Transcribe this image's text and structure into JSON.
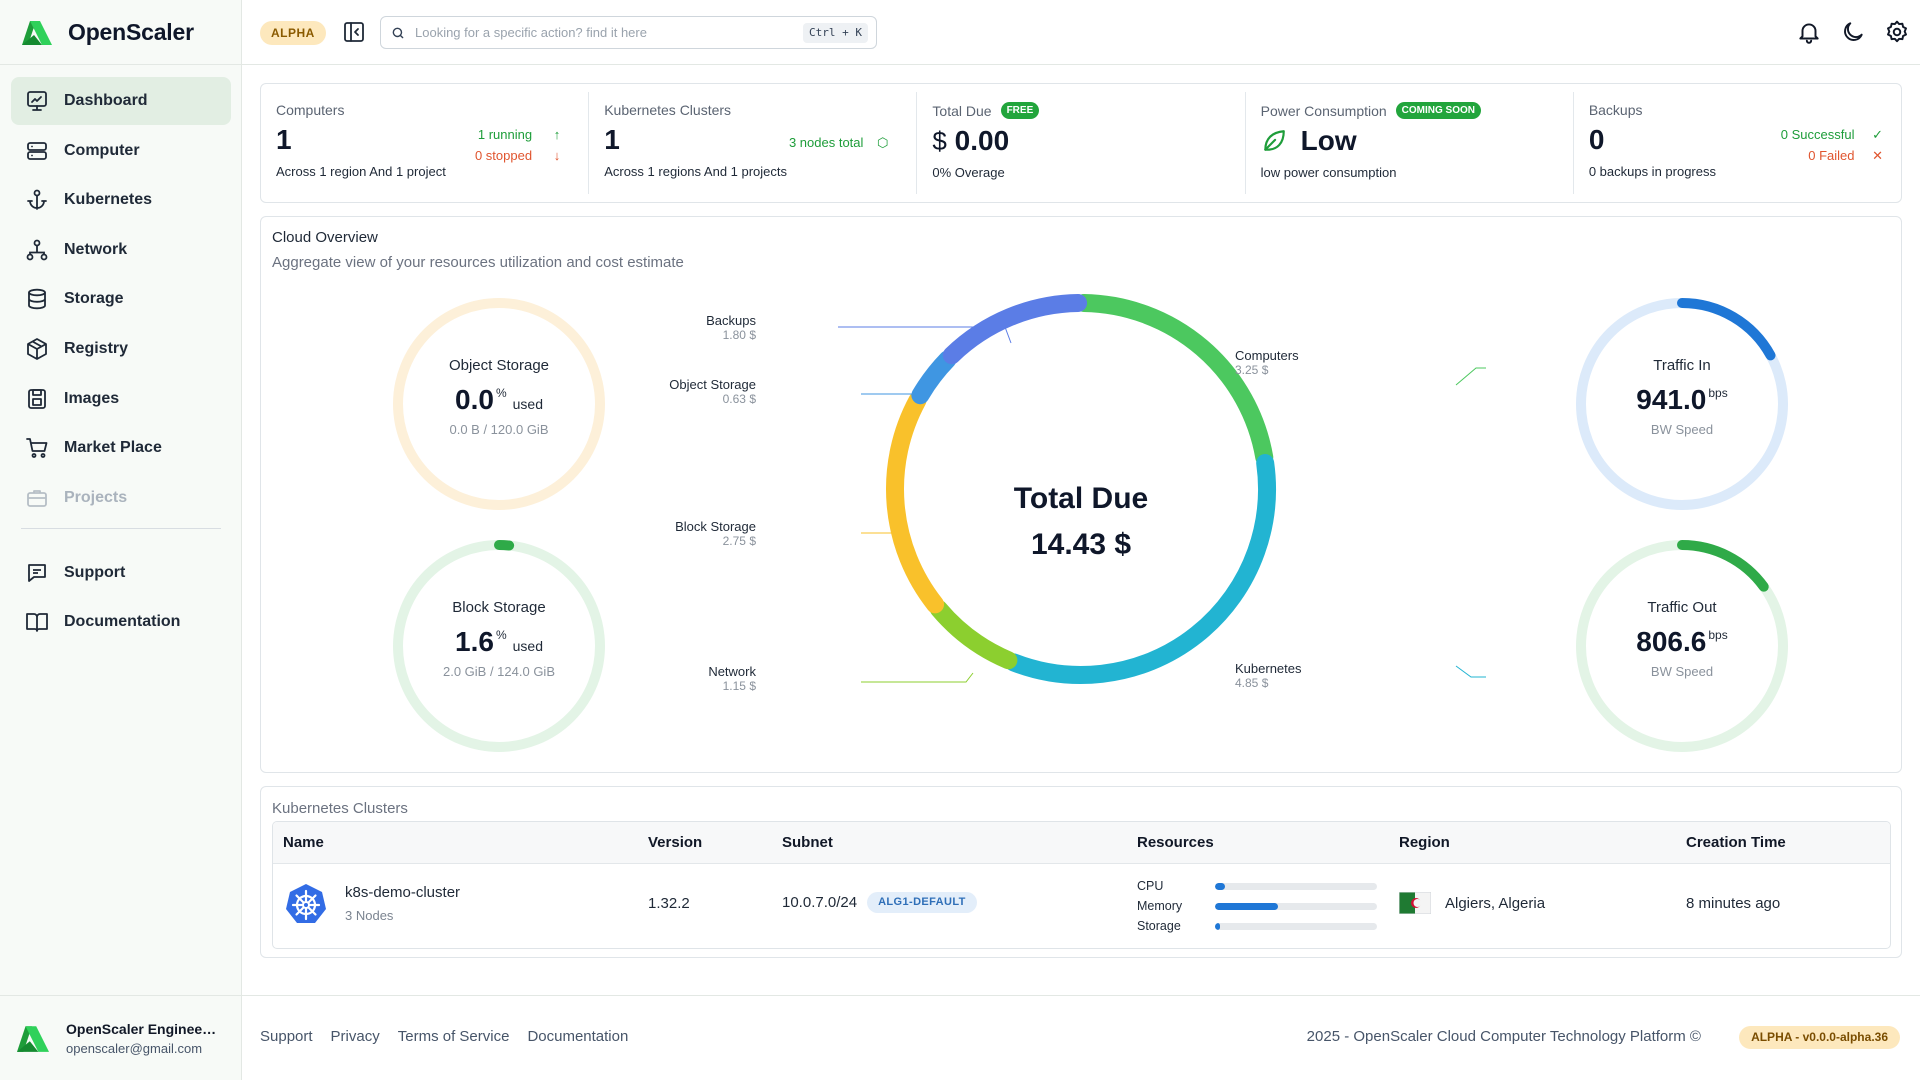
{
  "brand": {
    "name": "OpenScaler"
  },
  "sidebar": {
    "items": [
      {
        "label": "Dashboard"
      },
      {
        "label": "Computer"
      },
      {
        "label": "Kubernetes"
      },
      {
        "label": "Network"
      },
      {
        "label": "Storage"
      },
      {
        "label": "Registry"
      },
      {
        "label": "Images"
      },
      {
        "label": "Market Place"
      },
      {
        "label": "Projects"
      }
    ],
    "bottom_items": [
      {
        "label": "Support"
      },
      {
        "label": "Documentation"
      }
    ],
    "user": {
      "name": "OpenScaler Engineeri...",
      "email": "openscaler@gmail.com"
    }
  },
  "topbar": {
    "badge": "ALPHA",
    "search_placeholder": "Looking for a specific action? find it here",
    "shortcut": "Ctrl + K"
  },
  "stats": {
    "computers": {
      "label": "Computers",
      "value": "1",
      "running": "1 running",
      "stopped": "0 stopped",
      "sub": "Across 1 region And 1 project"
    },
    "kubernetes": {
      "label": "Kubernetes Clusters",
      "value": "1",
      "nodes": "3 nodes total",
      "sub": "Across 1 regions And 1 projects"
    },
    "total_due": {
      "label": "Total Due",
      "badge": "FREE",
      "currency": "$",
      "value": "0.00",
      "sub": "0% Overage"
    },
    "power": {
      "label": "Power Consumption",
      "badge": "COMING SOON",
      "value": "Low",
      "sub": "low power consumption"
    },
    "backups": {
      "label": "Backups",
      "value": "0",
      "successful": "0 Successful",
      "failed": "0 Failed",
      "sub": "0 backups in progress"
    }
  },
  "overview": {
    "title": "Cloud Overview",
    "subtitle": "Aggregate view of your resources utilization and cost estimate",
    "object_storage": {
      "label": "Object Storage",
      "value": "0.0",
      "unit_sup": "%",
      "unit": "used",
      "detail": "0.0 B / 120.0 GiB",
      "fraction": 0.0
    },
    "block_storage": {
      "label": "Block Storage",
      "value": "1.6",
      "unit_sup": "%",
      "unit": "used",
      "detail": "2.0 GiB / 124.0 GiB",
      "fraction": 0.016
    },
    "traffic_in": {
      "label": "Traffic In",
      "value": "941.0",
      "unit_sup": "bps",
      "detail": "BW Speed",
      "fraction": 0.17
    },
    "traffic_out": {
      "label": "Traffic Out",
      "value": "806.6",
      "unit_sup": "bps",
      "detail": "BW Speed",
      "fraction": 0.15
    },
    "total": {
      "label": "Total Due",
      "value": "14.43 $"
    }
  },
  "chart_data": {
    "type": "pie",
    "title": "Total Due",
    "categories": [
      "Computers",
      "Kubernetes",
      "Network",
      "Block Storage",
      "Object Storage",
      "Backups"
    ],
    "values": [
      3.25,
      4.85,
      1.15,
      2.75,
      0.63,
      1.8
    ],
    "value_labels": [
      "3.25 $",
      "4.85 $",
      "1.15 $",
      "2.75 $",
      "0.63 $",
      "1.80 $"
    ],
    "colors": [
      "#4cc85f",
      "#22b4d2",
      "#8ccf2f",
      "#f9c12b",
      "#3f96e2",
      "#5b7de6"
    ],
    "center_text": "14.43 $"
  },
  "clusters": {
    "title": "Kubernetes Clusters",
    "columns": [
      "Name",
      "Version",
      "Subnet",
      "Resources",
      "Region",
      "Creation Time"
    ],
    "rows": [
      {
        "name": "k8s-demo-cluster",
        "nodes": "3 Nodes",
        "version": "1.32.2",
        "subnet": "10.0.7.0/24",
        "subnet_tag": "ALG1-DEFAULT",
        "resources": [
          {
            "label": "CPU",
            "fraction": 0.06
          },
          {
            "label": "Memory",
            "fraction": 0.39
          },
          {
            "label": "Storage",
            "fraction": 0.03
          }
        ],
        "region": "Algiers, Algeria",
        "created": "8 minutes ago"
      }
    ]
  },
  "footer": {
    "links": [
      "Support",
      "Privacy",
      "Terms of Service",
      "Documentation"
    ],
    "copyright": "2025 - OpenScaler Cloud Computer Technology Platform ©",
    "version": "ALPHA - v0.0.0-alpha.36"
  },
  "colors": {
    "accent": "#22a53c",
    "blue": "#1f77d6",
    "danger": "#e0552f",
    "warning_bg": "#fde8bd"
  }
}
